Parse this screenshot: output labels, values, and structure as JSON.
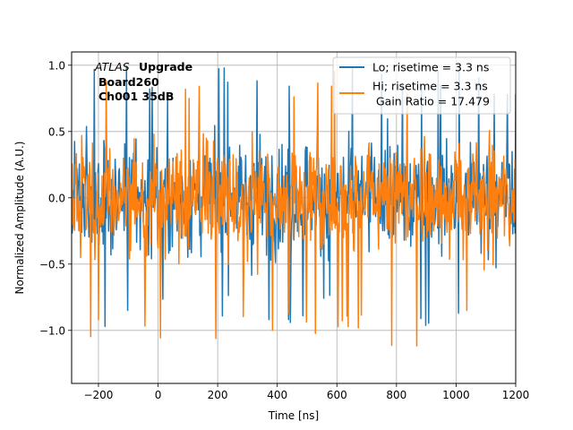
{
  "chart_data": {
    "type": "line",
    "title": "",
    "xlabel": "Time [ns]",
    "ylabel": "Normalized Amplitude (A.U.)",
    "xlim": [
      -290,
      1200
    ],
    "ylim": [
      -1.4,
      1.1
    ],
    "xticks": [
      -200,
      0,
      200,
      400,
      600,
      800,
      1000,
      1200
    ],
    "xtick_labels": [
      "−200",
      "0",
      "200",
      "400",
      "600",
      "800",
      "1000",
      "1200"
    ],
    "yticks": [
      -1.0,
      -0.5,
      0.0,
      0.5,
      1.0
    ],
    "ytick_labels": [
      "−1.0",
      "−0.5",
      "0.0",
      "0.5",
      "1.0"
    ],
    "grid": true,
    "legend_position": "top-right",
    "annotation": {
      "atlas": "ATLAS",
      "upgrade": "Upgrade",
      "board": "Board260",
      "channel": "Ch001 35dB"
    },
    "series": [
      {
        "name": "Lo; risetime = 3.3 ns",
        "color": "#1f77b4",
        "x_start": -290,
        "x_step": 2,
        "amplitude_range": [
          -0.98,
          1.0
        ],
        "description_values_seed": 7
      },
      {
        "name": "Hi; risetime = 3.3 ns",
        "name_line2": " Gain Ratio = 17.479",
        "color": "#ff7f0e",
        "x_start": -290,
        "x_step": 2,
        "amplitude_range": [
          -1.12,
          0.97
        ],
        "description_values_seed": 13
      }
    ]
  }
}
